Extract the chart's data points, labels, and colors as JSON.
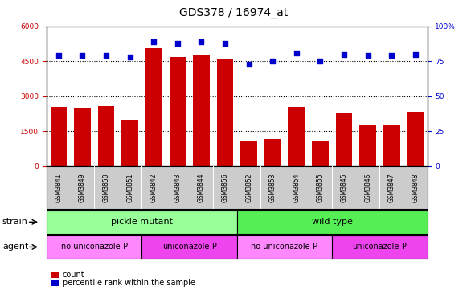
{
  "title": "GDS378 / 16974_at",
  "samples": [
    "GSM3841",
    "GSM3849",
    "GSM3850",
    "GSM3851",
    "GSM3842",
    "GSM3843",
    "GSM3844",
    "GSM3856",
    "GSM3852",
    "GSM3853",
    "GSM3854",
    "GSM3855",
    "GSM3845",
    "GSM3846",
    "GSM3847",
    "GSM3848"
  ],
  "counts": [
    2550,
    2480,
    2580,
    1950,
    5050,
    4680,
    4800,
    4620,
    1100,
    1150,
    2560,
    1100,
    2280,
    1800,
    1800,
    2350
  ],
  "percentiles": [
    79,
    79,
    79,
    78,
    89,
    88,
    89,
    88,
    73,
    75,
    81,
    75,
    80,
    79,
    79,
    80
  ],
  "ylim_left": [
    0,
    6000
  ],
  "ylim_right": [
    0,
    100
  ],
  "yticks_left": [
    0,
    1500,
    3000,
    4500,
    6000
  ],
  "yticks_right": [
    0,
    25,
    50,
    75,
    100
  ],
  "bar_color": "#cc0000",
  "dot_color": "#0000cc",
  "strain_groups": [
    {
      "label": "pickle mutant",
      "start": 0,
      "end": 8,
      "color": "#99ff99"
    },
    {
      "label": "wild type",
      "start": 8,
      "end": 16,
      "color": "#55ee55"
    }
  ],
  "agent_groups": [
    {
      "label": "no uniconazole-P",
      "start": 0,
      "end": 4,
      "color": "#ff88ff"
    },
    {
      "label": "uniconazole-P",
      "start": 4,
      "end": 8,
      "color": "#ee44ee"
    },
    {
      "label": "no uniconazole-P",
      "start": 8,
      "end": 12,
      "color": "#ff88ff"
    },
    {
      "label": "uniconazole-P",
      "start": 12,
      "end": 16,
      "color": "#ee44ee"
    }
  ],
  "strain_label": "strain",
  "agent_label": "agent",
  "legend_count_label": "count",
  "legend_pct_label": "percentile rank within the sample",
  "plot_bg": "#ffffff",
  "xtick_bg": "#cccccc",
  "grid_color": "#000000",
  "right_axis_color": "#0000cc",
  "left_axis_color": "#cc0000",
  "title_fontsize": 10,
  "tick_fontsize": 6.5,
  "label_fontsize": 8
}
